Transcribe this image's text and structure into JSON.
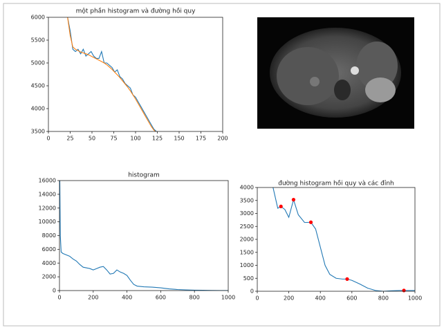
{
  "chart_data": [
    {
      "type": "line",
      "title": "một phần histogram và đường hồi quy",
      "x": [
        22,
        25,
        28,
        31,
        34,
        37,
        40,
        43,
        46,
        49,
        52,
        55,
        58,
        61,
        64,
        67,
        70,
        73,
        76,
        79,
        82,
        85,
        88,
        91,
        94,
        97,
        100,
        103,
        106,
        109,
        112,
        115,
        118,
        121,
        124
      ],
      "series": [
        {
          "color": "#1f77b4",
          "values": [
            6000,
            5700,
            5300,
            5250,
            5300,
            5200,
            5300,
            5150,
            5200,
            5250,
            5150,
            5100,
            5100,
            5250,
            5000,
            5000,
            4950,
            4900,
            4800,
            4850,
            4700,
            4650,
            4550,
            4500,
            4450,
            4300,
            4250,
            4150,
            4050,
            3950,
            3850,
            3750,
            3650,
            3550,
            3500
          ]
        },
        {
          "color": "#ff7f0e",
          "values": [
            6000,
            5600,
            5350,
            5300,
            5270,
            5240,
            5220,
            5200,
            5180,
            5150,
            5120,
            5090,
            5060,
            5030,
            5000,
            4960,
            4910,
            4860,
            4800,
            4740,
            4680,
            4610,
            4540,
            4470,
            4390,
            4300,
            4210,
            4110,
            4010,
            3910,
            3810,
            3710,
            3610,
            3530,
            3480
          ]
        }
      ],
      "xlim": [
        0,
        200
      ],
      "xticks": [
        0,
        25,
        50,
        75,
        100,
        125,
        150,
        175,
        200
      ],
      "ylim": [
        3500,
        6000
      ],
      "yticks": [
        3500,
        4000,
        4500,
        5000,
        5500,
        6000
      ]
    },
    {
      "type": "line",
      "title": "histogram",
      "x": [
        2,
        5,
        10,
        20,
        40,
        60,
        80,
        100,
        120,
        140,
        160,
        180,
        200,
        220,
        240,
        260,
        280,
        300,
        320,
        340,
        360,
        380,
        400,
        420,
        440,
        460,
        480,
        500,
        550,
        600,
        650,
        700,
        750,
        800,
        850,
        900,
        950,
        1000
      ],
      "series": [
        {
          "color": "#1f77b4",
          "values": [
            16000,
            8000,
            5600,
            5400,
            5200,
            5000,
            4600,
            4300,
            3800,
            3400,
            3300,
            3200,
            3000,
            3200,
            3400,
            3500,
            3000,
            2400,
            2500,
            3000,
            2700,
            2500,
            2200,
            1500,
            900,
            650,
            600,
            550,
            500,
            400,
            250,
            150,
            100,
            60,
            40,
            20,
            10,
            5
          ]
        }
      ],
      "xlim": [
        0,
        1000
      ],
      "xticks": [
        0,
        200,
        400,
        600,
        800,
        1000
      ],
      "ylim": [
        0,
        16000
      ],
      "yticks": [
        0,
        2000,
        4000,
        6000,
        8000,
        10000,
        12000,
        14000,
        16000
      ]
    },
    {
      "type": "line",
      "title": "đường histogram hồi quy và các đỉnh",
      "x": [
        100,
        130,
        150,
        175,
        200,
        230,
        260,
        300,
        340,
        370,
        400,
        430,
        460,
        500,
        540,
        570,
        600,
        650,
        700,
        750,
        800,
        850,
        900,
        950,
        1000
      ],
      "series": [
        {
          "color": "#1f77b4",
          "values": [
            4000,
            3200,
            3270,
            3150,
            2850,
            3530,
            2950,
            2650,
            2660,
            2400,
            1700,
            1000,
            650,
            500,
            470,
            470,
            420,
            280,
            120,
            30,
            0,
            20,
            30,
            30,
            30
          ]
        }
      ],
      "peaks": {
        "color": "red",
        "x": [
          150,
          230,
          340,
          570,
          930
        ],
        "values": [
          3270,
          3530,
          2660,
          470,
          30
        ]
      },
      "xlim": [
        0,
        1000
      ],
      "xticks": [
        0,
        200,
        400,
        600,
        800,
        1000
      ],
      "ylim": [
        0,
        4000
      ],
      "yticks": [
        0,
        500,
        1000,
        1500,
        2000,
        2500,
        3000,
        3500,
        4000
      ]
    }
  ]
}
